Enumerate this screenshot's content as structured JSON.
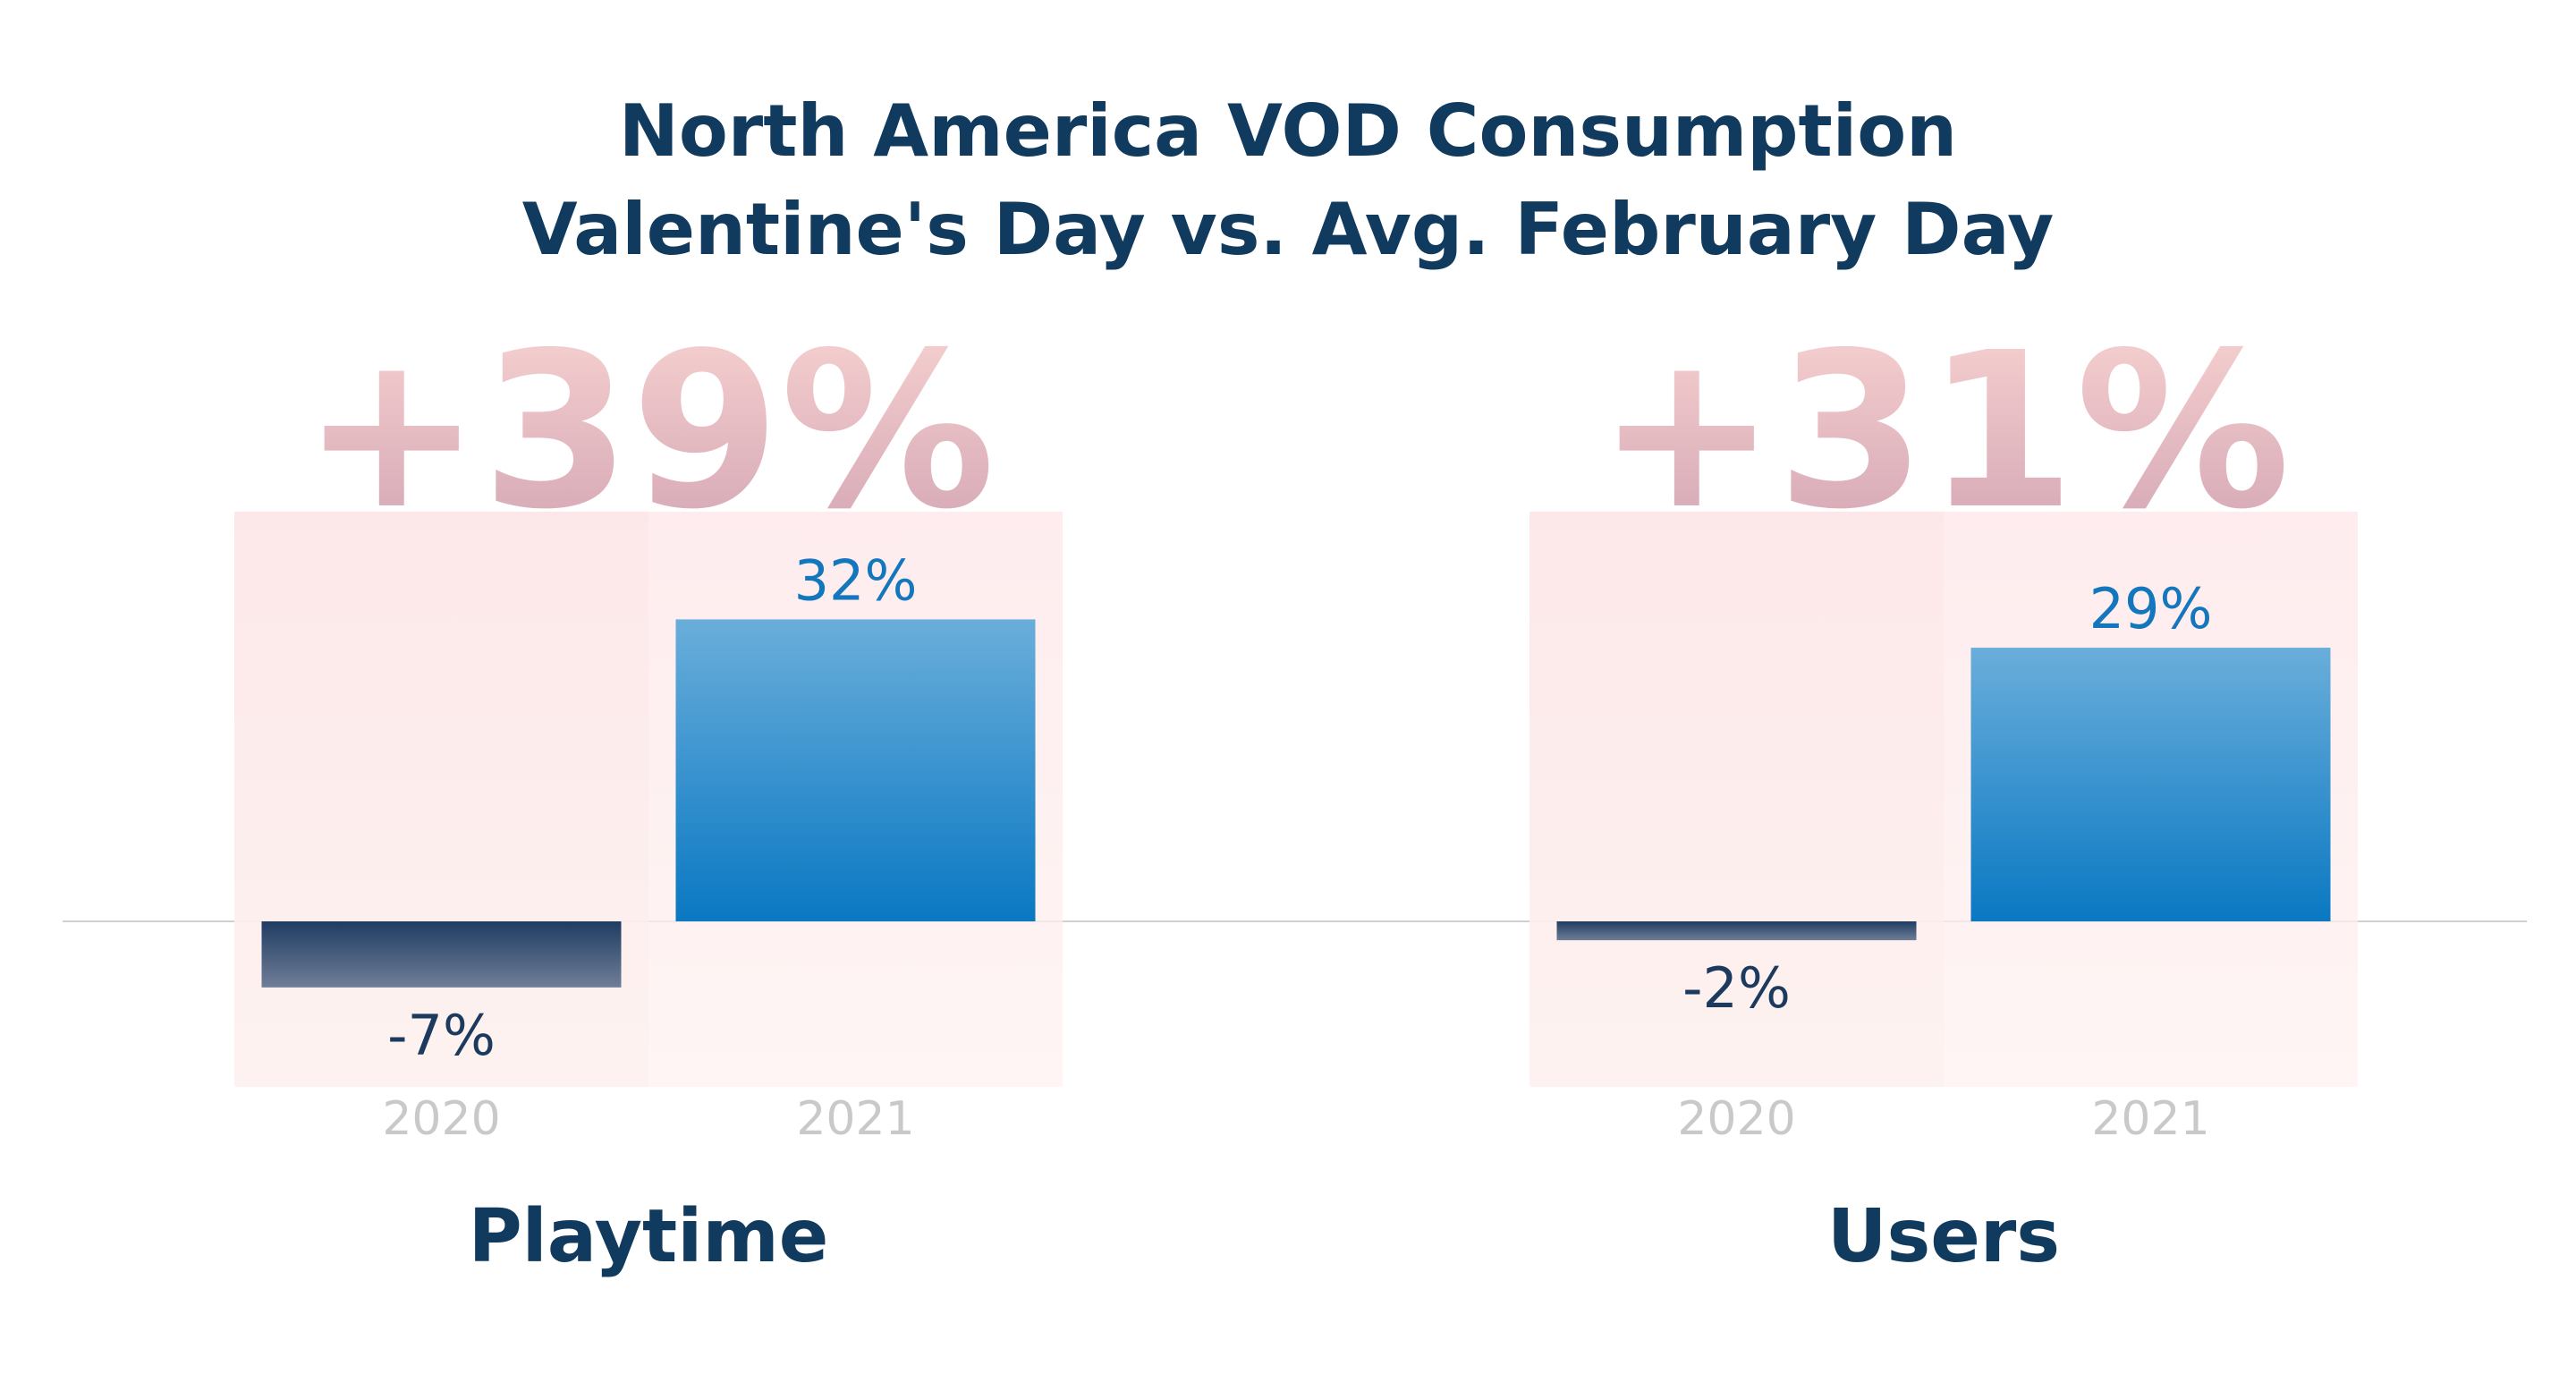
{
  "title": [
    "North America VOD Consumption",
    "Valentine's Day vs. Avg. February Day"
  ],
  "colors": {
    "title": "#103a5e",
    "panel_top": "#fde6e8",
    "panel_bottom": "#fdf2f0",
    "bar_2021_top": "#6aaedb",
    "bar_2021_bottom": "#0a78c2",
    "bar_2020_top": "#1f3d62",
    "bar_2020_bottom": "#707e97",
    "label_2021": "#1477be",
    "label_2020": "#1b3a5e",
    "year_label": "#c9c9c9",
    "change_top": "#f9d4d2",
    "change_bottom": "#d2a4b3",
    "baseline": "#d0d0d0"
  },
  "chart_data": [
    {
      "type": "bar",
      "category_label": "Playtime",
      "change_label": "+39%",
      "categories": [
        "2020",
        "2021"
      ],
      "values": [
        -7,
        32
      ],
      "value_labels": [
        "-7%",
        "32%"
      ],
      "ylim": [
        -18,
        45
      ]
    },
    {
      "type": "bar",
      "category_label": "Users",
      "change_label": "+31%",
      "categories": [
        "2020",
        "2021"
      ],
      "values": [
        -2,
        29
      ],
      "value_labels": [
        "-2%",
        "29%"
      ],
      "ylim": [
        -18,
        45
      ]
    }
  ]
}
